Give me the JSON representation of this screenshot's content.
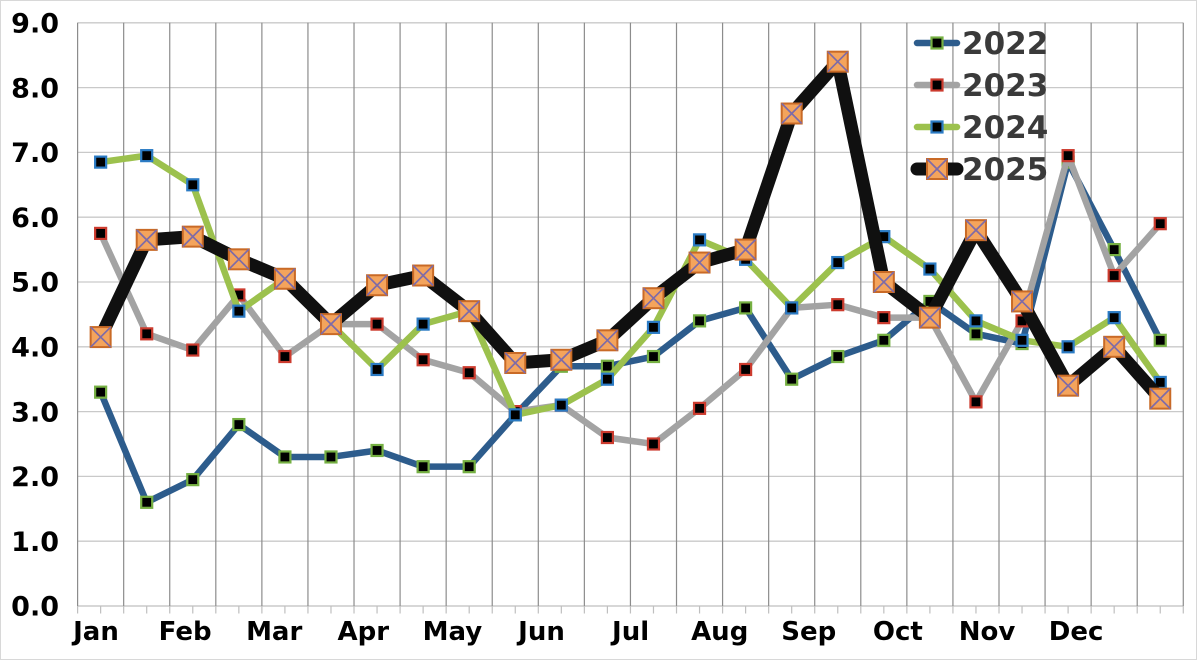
{
  "chart_data": {
    "type": "line",
    "title": "",
    "xlabel": "",
    "ylabel": "",
    "ylim": [
      0,
      9
    ],
    "y_tick_step": 1.0,
    "y_tick_labels": [
      "0.0",
      "1.0",
      "2.0",
      "3.0",
      "4.0",
      "5.0",
      "6.0",
      "7.0",
      "8.0",
      "9.0"
    ],
    "categories_months": [
      "Jan",
      "Feb",
      "Mar",
      "Apr",
      "May",
      "Jun",
      "Jul",
      "Aug",
      "Sep",
      "Oct",
      "Nov",
      "Dec"
    ],
    "points_per_month": 2,
    "grid": {
      "vertical": true,
      "horizontal": true
    },
    "legend": {
      "position": "top-right",
      "entries": [
        "2022",
        "2023",
        "2024",
        "2025"
      ]
    },
    "series": [
      {
        "name": "2022",
        "line_color": "#2d5c8c",
        "line_width": 6.5,
        "marker": {
          "shape": "square",
          "size": 11,
          "fill": "#000000",
          "border": "#76b043",
          "border_width": 2.2
        },
        "values": [
          3.3,
          1.6,
          1.95,
          2.8,
          2.3,
          2.3,
          2.4,
          2.15,
          2.15,
          2.95,
          3.7,
          3.7,
          3.85,
          4.4,
          4.6,
          3.5,
          3.85,
          4.1,
          4.7,
          4.2,
          4.05,
          6.85,
          5.5,
          4.1
        ]
      },
      {
        "name": "2023",
        "line_color": "#a3a3a3",
        "line_width": 6.5,
        "marker": {
          "shape": "square",
          "size": 11,
          "fill": "#000000",
          "border": "#cc3b2e",
          "border_width": 2.2
        },
        "values": [
          5.75,
          4.2,
          3.95,
          4.8,
          3.85,
          4.35,
          4.35,
          3.8,
          3.6,
          3.0,
          3.1,
          2.6,
          2.5,
          3.05,
          3.65,
          4.6,
          4.65,
          4.45,
          4.45,
          3.15,
          4.4,
          6.95,
          5.1,
          5.9
        ]
      },
      {
        "name": "2024",
        "line_color": "#9cc14d",
        "line_width": 6.5,
        "marker": {
          "shape": "square",
          "size": 11,
          "fill": "#000000",
          "border": "#2b7bc4",
          "border_width": 2.2
        },
        "values": [
          6.85,
          6.95,
          6.5,
          4.55,
          5.05,
          4.35,
          3.65,
          4.35,
          4.55,
          2.95,
          3.1,
          3.5,
          4.3,
          5.65,
          5.35,
          4.6,
          5.3,
          5.7,
          5.2,
          4.4,
          4.1,
          4.0,
          4.45,
          3.45
        ]
      },
      {
        "name": "2025",
        "line_color": "#101010",
        "line_width": 13,
        "marker": {
          "shape": "square-x",
          "size": 20,
          "fill": "#f4a45c",
          "border": "#c96a26",
          "border_width": 2,
          "x_color": "#7e6ba8"
        },
        "values": [
          4.15,
          5.65,
          5.7,
          5.35,
          5.05,
          4.35,
          4.95,
          5.1,
          4.55,
          3.75,
          3.8,
          4.1,
          4.75,
          5.3,
          5.5,
          7.6,
          8.4,
          5.0,
          4.45,
          5.8,
          4.7,
          3.4,
          4.0,
          3.2
        ]
      }
    ],
    "colors": {
      "background": "#ffffff",
      "outer_border": "#d8d8d8",
      "vertical_gridline": "#8c8c8c",
      "horizontal_gridline": "#c9c9c9",
      "axis_line": "#bfbfbf",
      "tick": "#bfbfbf",
      "axis_label_text": "#000000",
      "legend_text": "#3a3a3a"
    }
  }
}
